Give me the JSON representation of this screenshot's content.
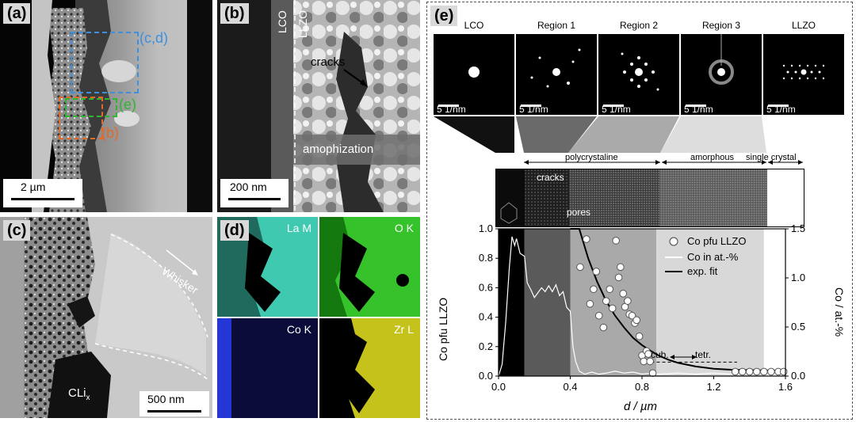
{
  "panels": {
    "a": {
      "label": "(a)",
      "box_cd": "(c,d)",
      "box_e": "(e)",
      "box_b": "(b)",
      "scale": "2 µm"
    },
    "b": {
      "label": "(b)",
      "lco": "LCO",
      "llzo": "LLZO",
      "cracks": "cracks",
      "amorph": "amophization",
      "scale": "200 nm"
    },
    "c": {
      "label": "(c)",
      "whisker": "Whisker",
      "cli": "CLi",
      "cli_sub": "x",
      "scale": "500 nm"
    },
    "d": {
      "label": "(d)",
      "maps": [
        {
          "name": "La M",
          "color": "#3fc9b0"
        },
        {
          "name": "O K",
          "color": "#36c22a"
        },
        {
          "name": "Co K",
          "color": "#2436d6"
        },
        {
          "name": "Zr L",
          "color": "#c6c21c"
        }
      ]
    },
    "e": {
      "label": "(e)",
      "diffraction": [
        {
          "title": "LCO",
          "scale": "5 1/nm"
        },
        {
          "title": "Region 1",
          "scale": "5 1/nm"
        },
        {
          "title": "Region 2",
          "scale": "5 1/nm"
        },
        {
          "title": "Region 3",
          "scale": "5 1/nm"
        },
        {
          "title": "LLZO",
          "scale": "5 1/nm"
        }
      ],
      "bands": {
        "polycrystalline": "polycrystaline",
        "amorphous": "amorphous",
        "single": "single crystal"
      },
      "strip": {
        "cracks": "cracks",
        "pores": "pores"
      },
      "legend": {
        "circles": "Co pfu LLZO",
        "line": "Co in at.-%",
        "fit": "exp. fit"
      },
      "annot_cub": "cub.",
      "annot_tetr": "tetr.",
      "xlabel": "d / µm",
      "ylabel_left": "Co pfu LLZO",
      "ylabel_right": "Co / at.-%"
    }
  },
  "chart_data": {
    "type": "scatter",
    "xlim": [
      0,
      1.6
    ],
    "ylim": [
      0,
      1.0
    ],
    "y2lim": [
      0,
      1.5
    ],
    "xticks": [
      "0.0",
      "0.4",
      "0.8",
      "1.2",
      "1.6"
    ],
    "yticks": [
      "0.0",
      "0.2",
      "0.4",
      "0.6",
      "0.8",
      "1.0"
    ],
    "y2ticks": [
      "0.0",
      "0.5",
      "1.0",
      "1.5"
    ],
    "regions": [
      {
        "x": [
          0,
          0.145
        ],
        "color": "#000000"
      },
      {
        "x": [
          0.145,
          0.4
        ],
        "color": "#5a5a5a"
      },
      {
        "x": [
          0.4,
          0.88
        ],
        "color": "#a9a9a9"
      },
      {
        "x": [
          0.88,
          1.48
        ],
        "color": "#d8d8d8"
      },
      {
        "x": [
          1.48,
          1.6
        ],
        "color": "#ffffff"
      }
    ],
    "series": [
      {
        "name": "Co pfu LLZO",
        "kind": "points",
        "axis": "left",
        "points": [
          [
            0.455,
            0.74
          ],
          [
            0.49,
            0.93
          ],
          [
            0.51,
            0.49
          ],
          [
            0.53,
            0.59
          ],
          [
            0.545,
            0.71
          ],
          [
            0.56,
            0.41
          ],
          [
            0.585,
            0.33
          ],
          [
            0.6,
            0.51
          ],
          [
            0.62,
            0.59
          ],
          [
            0.635,
            0.46
          ],
          [
            0.655,
            0.92
          ],
          [
            0.67,
            0.67
          ],
          [
            0.68,
            0.74
          ],
          [
            0.695,
            0.56
          ],
          [
            0.705,
            0.47
          ],
          [
            0.72,
            0.51
          ],
          [
            0.73,
            0.42
          ],
          [
            0.745,
            0.41
          ],
          [
            0.76,
            0.36
          ],
          [
            0.77,
            0.38
          ],
          [
            0.785,
            0.27
          ],
          [
            0.8,
            0.14
          ],
          [
            0.81,
            0.1
          ],
          [
            0.825,
            0.17
          ],
          [
            0.835,
            0.15
          ],
          [
            0.845,
            0.1
          ],
          [
            0.86,
            0.02
          ],
          [
            1.32,
            0.03
          ],
          [
            1.36,
            0.03
          ],
          [
            1.4,
            0.03
          ],
          [
            1.44,
            0.03
          ],
          [
            1.48,
            0.03
          ],
          [
            1.52,
            0.03
          ],
          [
            1.56,
            0.03
          ],
          [
            1.59,
            0.03
          ]
        ]
      },
      {
        "name": "Co in at.-%",
        "kind": "line",
        "axis": "right",
        "color": "#ffffff",
        "points": [
          [
            0.0,
            0.0
          ],
          [
            0.02,
            0.12
          ],
          [
            0.04,
            0.55
          ],
          [
            0.06,
            1.1
          ],
          [
            0.075,
            1.42
          ],
          [
            0.09,
            1.33
          ],
          [
            0.1,
            1.4
          ],
          [
            0.12,
            1.25
          ],
          [
            0.145,
            1.22
          ],
          [
            0.16,
            0.95
          ],
          [
            0.18,
            0.88
          ],
          [
            0.2,
            0.8
          ],
          [
            0.22,
            0.85
          ],
          [
            0.24,
            0.9
          ],
          [
            0.26,
            0.86
          ],
          [
            0.28,
            0.92
          ],
          [
            0.3,
            0.86
          ],
          [
            0.32,
            0.93
          ],
          [
            0.34,
            0.82
          ],
          [
            0.36,
            0.86
          ],
          [
            0.38,
            0.7
          ],
          [
            0.4,
            0.66
          ],
          [
            0.415,
            0.3
          ],
          [
            0.43,
            0.15
          ],
          [
            0.45,
            0.05
          ],
          [
            0.48,
            0.02
          ],
          [
            0.52,
            0.04
          ],
          [
            0.56,
            0.02
          ],
          [
            0.6,
            0.03
          ],
          [
            0.65,
            0.05
          ],
          [
            0.7,
            0.03
          ],
          [
            0.75,
            0.04
          ],
          [
            0.8,
            0.02
          ],
          [
            0.85,
            0.03
          ],
          [
            0.9,
            0.02
          ],
          [
            1.0,
            0.03
          ],
          [
            1.1,
            0.02
          ],
          [
            1.2,
            0.03
          ],
          [
            1.3,
            0.02
          ],
          [
            1.4,
            0.02
          ],
          [
            1.5,
            0.03
          ],
          [
            1.6,
            0.02
          ]
        ]
      },
      {
        "name": "exp. fit",
        "kind": "line",
        "axis": "left",
        "color": "#000000",
        "points": [
          [
            0.4,
            1.25
          ],
          [
            0.45,
            1.0
          ],
          [
            0.5,
            0.8
          ],
          [
            0.55,
            0.64
          ],
          [
            0.6,
            0.51
          ],
          [
            0.65,
            0.41
          ],
          [
            0.7,
            0.33
          ],
          [
            0.75,
            0.26
          ],
          [
            0.8,
            0.21
          ],
          [
            0.85,
            0.17
          ],
          [
            0.9,
            0.135
          ],
          [
            0.95,
            0.11
          ],
          [
            1.0,
            0.09
          ],
          [
            1.1,
            0.065
          ],
          [
            1.2,
            0.05
          ],
          [
            1.3,
            0.043
          ],
          [
            1.4,
            0.04
          ],
          [
            1.5,
            0.038
          ],
          [
            1.6,
            0.037
          ]
        ]
      }
    ]
  }
}
